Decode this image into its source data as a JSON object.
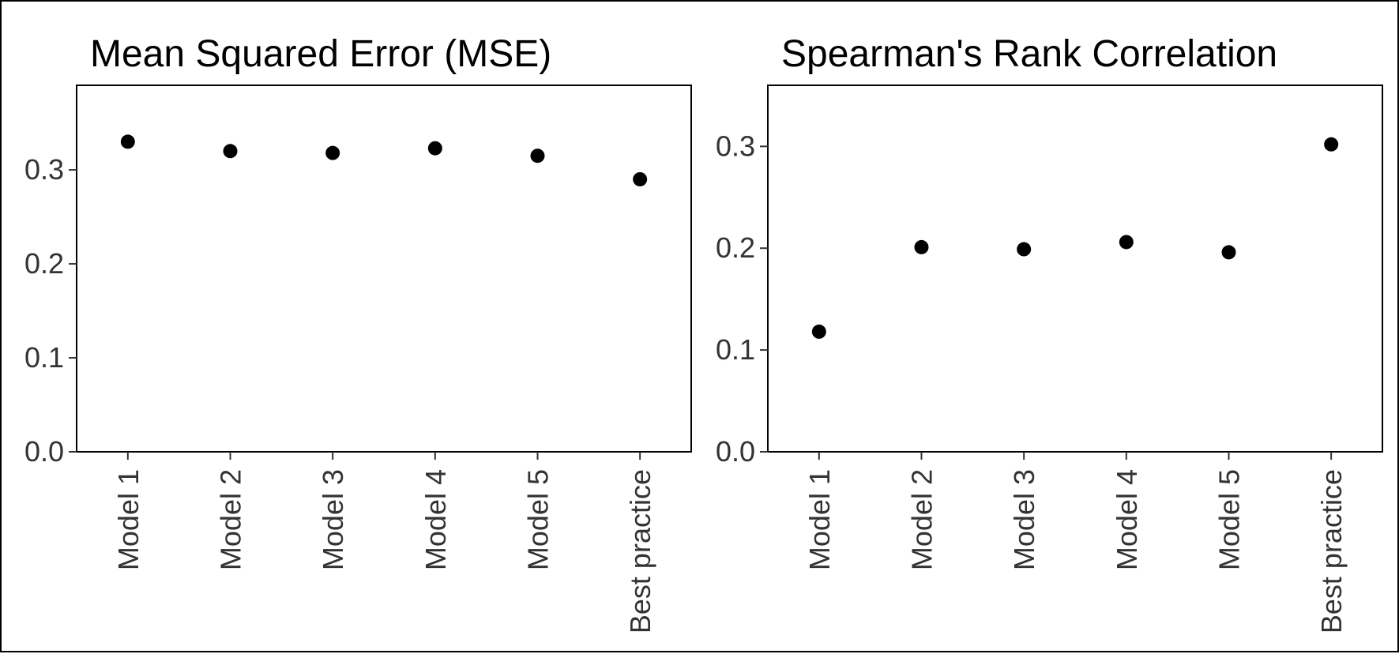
{
  "chart_data": [
    {
      "type": "scatter",
      "title": "Mean Squared Error (MSE)",
      "xlabel": "",
      "ylabel": "",
      "categories": [
        "Model 1",
        "Model 2",
        "Model 3",
        "Model 4",
        "Model 5",
        "Best practice"
      ],
      "values": [
        0.33,
        0.32,
        0.318,
        0.323,
        0.315,
        0.29
      ],
      "ylim": [
        0,
        0.39
      ],
      "yticks": [
        "0.0",
        "0.1",
        "0.2",
        "0.3"
      ],
      "grid": false,
      "point_color": "#000000"
    },
    {
      "type": "scatter",
      "title": "Spearman's Rank Correlation",
      "xlabel": "",
      "ylabel": "",
      "categories": [
        "Model 1",
        "Model 2",
        "Model 3",
        "Model 4",
        "Model 5",
        "Best practice"
      ],
      "values": [
        0.118,
        0.201,
        0.199,
        0.206,
        0.196,
        0.302
      ],
      "ylim": [
        0,
        0.36
      ],
      "yticks": [
        "0.0",
        "0.1",
        "0.2",
        "0.3"
      ],
      "grid": false,
      "point_color": "#000000"
    }
  ]
}
